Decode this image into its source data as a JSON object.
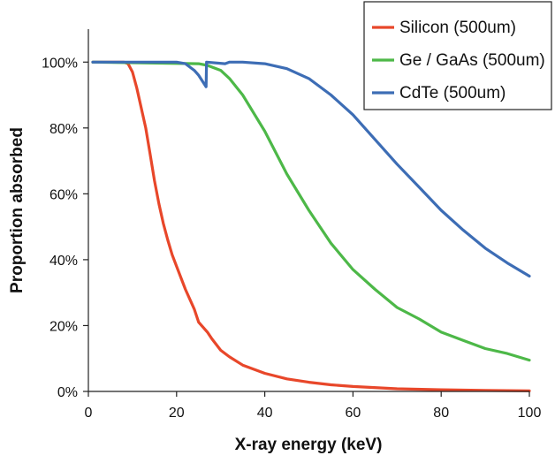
{
  "chart_data": {
    "type": "line",
    "title": "",
    "xlabel": "X-ray energy (keV)",
    "ylabel": "Proportion absorbed",
    "xlim": [
      0,
      100
    ],
    "ylim": [
      0,
      110
    ],
    "x_ticks": [
      0,
      20,
      40,
      60,
      80,
      100
    ],
    "y_ticks": [
      0,
      20,
      40,
      60,
      80,
      100
    ],
    "x_tick_labels": [
      "0",
      "20",
      "40",
      "60",
      "80",
      "100"
    ],
    "y_tick_labels": [
      "0%",
      "20%",
      "40%",
      "60%",
      "80%",
      "100%"
    ],
    "grid": false,
    "legend_position": "top-right",
    "series": [
      {
        "name": "Silicon (500um)",
        "color": "#e8472a",
        "points": [
          [
            1,
            100
          ],
          [
            8,
            100
          ],
          [
            9,
            99.5
          ],
          [
            10,
            97
          ],
          [
            11,
            92
          ],
          [
            12,
            86
          ],
          [
            13,
            80
          ],
          [
            14,
            72
          ],
          [
            15,
            64
          ],
          [
            16,
            57
          ],
          [
            17,
            51
          ],
          [
            18,
            46
          ],
          [
            19,
            41.5
          ],
          [
            20,
            38
          ],
          [
            22,
            31
          ],
          [
            24,
            25
          ],
          [
            25,
            21
          ],
          [
            27,
            18
          ],
          [
            28,
            16
          ],
          [
            30,
            12.5
          ],
          [
            32,
            10.5
          ],
          [
            35,
            8
          ],
          [
            40,
            5.5
          ],
          [
            45,
            3.8
          ],
          [
            50,
            2.8
          ],
          [
            55,
            2
          ],
          [
            60,
            1.5
          ],
          [
            70,
            0.8
          ],
          [
            80,
            0.5
          ],
          [
            90,
            0.3
          ],
          [
            100,
            0.2
          ]
        ]
      },
      {
        "name": "Ge / GaAs (500um)",
        "color": "#4db848",
        "points": [
          [
            1,
            100
          ],
          [
            25,
            99.5
          ],
          [
            27,
            99
          ],
          [
            30,
            97.5
          ],
          [
            32,
            95
          ],
          [
            35,
            90
          ],
          [
            40,
            79
          ],
          [
            45,
            66
          ],
          [
            50,
            55
          ],
          [
            55,
            45
          ],
          [
            60,
            37
          ],
          [
            65,
            31
          ],
          [
            70,
            25.5
          ],
          [
            75,
            22
          ],
          [
            80,
            18
          ],
          [
            85,
            15.5
          ],
          [
            90,
            13
          ],
          [
            95,
            11.5
          ],
          [
            100,
            9.5
          ]
        ]
      },
      {
        "name": "CdTe (500um)",
        "color": "#3d6db5",
        "points": [
          [
            1,
            100
          ],
          [
            20,
            100
          ],
          [
            22,
            99.5
          ],
          [
            24,
            97.5
          ],
          [
            25,
            96
          ],
          [
            26.7,
            92.5
          ],
          [
            26.8,
            100
          ],
          [
            31,
            99.5
          ],
          [
            32,
            100
          ],
          [
            35,
            100
          ],
          [
            40,
            99.5
          ],
          [
            45,
            98
          ],
          [
            50,
            95
          ],
          [
            55,
            90
          ],
          [
            60,
            84
          ],
          [
            65,
            76.5
          ],
          [
            70,
            69
          ],
          [
            75,
            62
          ],
          [
            80,
            55
          ],
          [
            85,
            49
          ],
          [
            90,
            43.5
          ],
          [
            95,
            39
          ],
          [
            100,
            35
          ]
        ]
      }
    ]
  }
}
